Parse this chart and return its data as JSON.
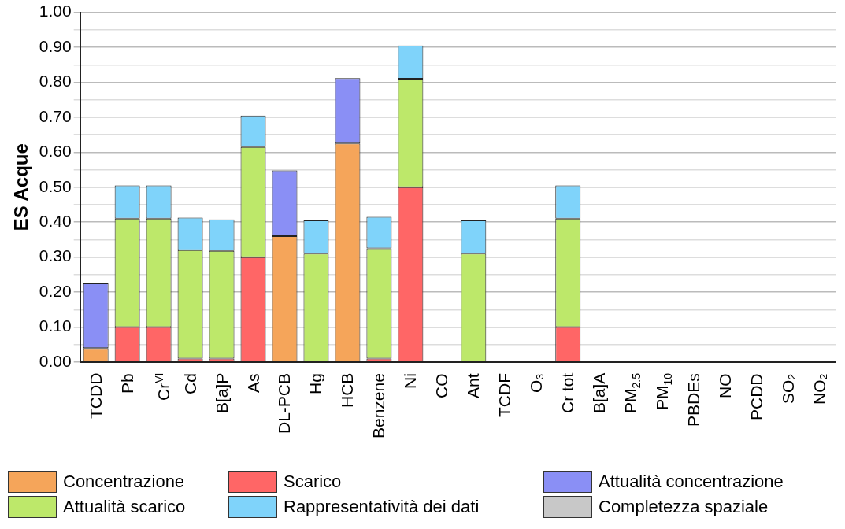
{
  "chart_data": {
    "type": "bar",
    "stacked": true,
    "ylabel": "ES Acque",
    "categories": [
      "TCDD",
      "Pb",
      "Cr$^{VI}$",
      "Cd",
      "B[a]P",
      "As",
      "DL-PCB",
      "Hg",
      "HCB",
      "Benzene",
      "Ni",
      "CO",
      "Ant",
      "TCDF",
      "O₃",
      "Cr tot",
      "B[a]A",
      "PM$_{2.5}$",
      "PM$_{10}$",
      "PBDEs",
      "NO",
      "PCDD",
      "SO₂",
      "NO₂"
    ],
    "series": [
      {
        "name": "Concentrazione",
        "color": "#f5a55a",
        "values": [
          0.04,
          null,
          null,
          null,
          null,
          null,
          0.36,
          null,
          0.625,
          null,
          null,
          null,
          null,
          null,
          null,
          null,
          null,
          null,
          null,
          null,
          null,
          null,
          null,
          null
        ]
      },
      {
        "name": "Scarico",
        "color": "#ff6666",
        "values": [
          null,
          0.1,
          0.1,
          0.01,
          0.01,
          0.3,
          null,
          null,
          null,
          0.01,
          0.5,
          null,
          null,
          null,
          null,
          0.1,
          null,
          null,
          null,
          null,
          null,
          null,
          null,
          null
        ]
      },
      {
        "name": "Attualità concentrazione",
        "color": "#8a8ff5",
        "values": [
          0.185,
          null,
          null,
          null,
          null,
          null,
          0.188,
          null,
          0.187,
          null,
          null,
          null,
          null,
          null,
          null,
          null,
          null,
          null,
          null,
          null,
          null,
          null,
          null,
          null
        ]
      },
      {
        "name": "Attualità scarico",
        "color": "#bde86a",
        "values": [
          null,
          0.31,
          0.31,
          0.31,
          0.308,
          0.315,
          null,
          0.31,
          null,
          0.315,
          0.31,
          null,
          0.31,
          null,
          null,
          0.31,
          null,
          null,
          null,
          null,
          null,
          null,
          null,
          null
        ]
      },
      {
        "name": "Rappresentatività dei dati",
        "color": "#7fd3fa",
        "values": [
          null,
          0.095,
          0.095,
          0.093,
          0.09,
          0.09,
          null,
          0.095,
          null,
          0.09,
          0.095,
          null,
          0.095,
          null,
          null,
          0.095,
          null,
          null,
          null,
          null,
          null,
          null,
          null,
          null
        ]
      },
      {
        "name": "Completezza spaziale",
        "color": "#c8c8c8",
        "values": [
          null,
          null,
          null,
          null,
          null,
          null,
          null,
          null,
          null,
          null,
          null,
          null,
          null,
          null,
          null,
          null,
          null,
          null,
          null,
          null,
          null,
          null,
          null,
          null
        ]
      }
    ],
    "ylim": [
      0,
      1
    ],
    "yticks": [
      {
        "value": 0,
        "label": "0.00"
      },
      {
        "value": 0.05,
        "label": null
      },
      {
        "value": 0.1,
        "label": "0.10"
      },
      {
        "value": 0.15,
        "label": null
      },
      {
        "value": 0.2,
        "label": "0.20"
      },
      {
        "value": 0.25,
        "label": null
      },
      {
        "value": 0.3,
        "label": "0.30"
      },
      {
        "value": 0.35,
        "label": null
      },
      {
        "value": 0.4,
        "label": "0.40"
      },
      {
        "value": 0.45,
        "label": null
      },
      {
        "value": 0.5,
        "label": "0.50"
      },
      {
        "value": 0.55,
        "label": null
      },
      {
        "value": 0.6,
        "label": "0.60"
      },
      {
        "value": 0.65,
        "label": null
      },
      {
        "value": 0.7,
        "label": "0.70"
      },
      {
        "value": 0.75,
        "label": null
      },
      {
        "value": 0.8,
        "label": "0.80"
      },
      {
        "value": 0.85,
        "label": null
      },
      {
        "value": 0.9,
        "label": "0.90"
      },
      {
        "value": 0.95,
        "label": null
      },
      {
        "value": 1,
        "label": "1.00"
      }
    ],
    "grid": "y",
    "legend": "bottom"
  }
}
